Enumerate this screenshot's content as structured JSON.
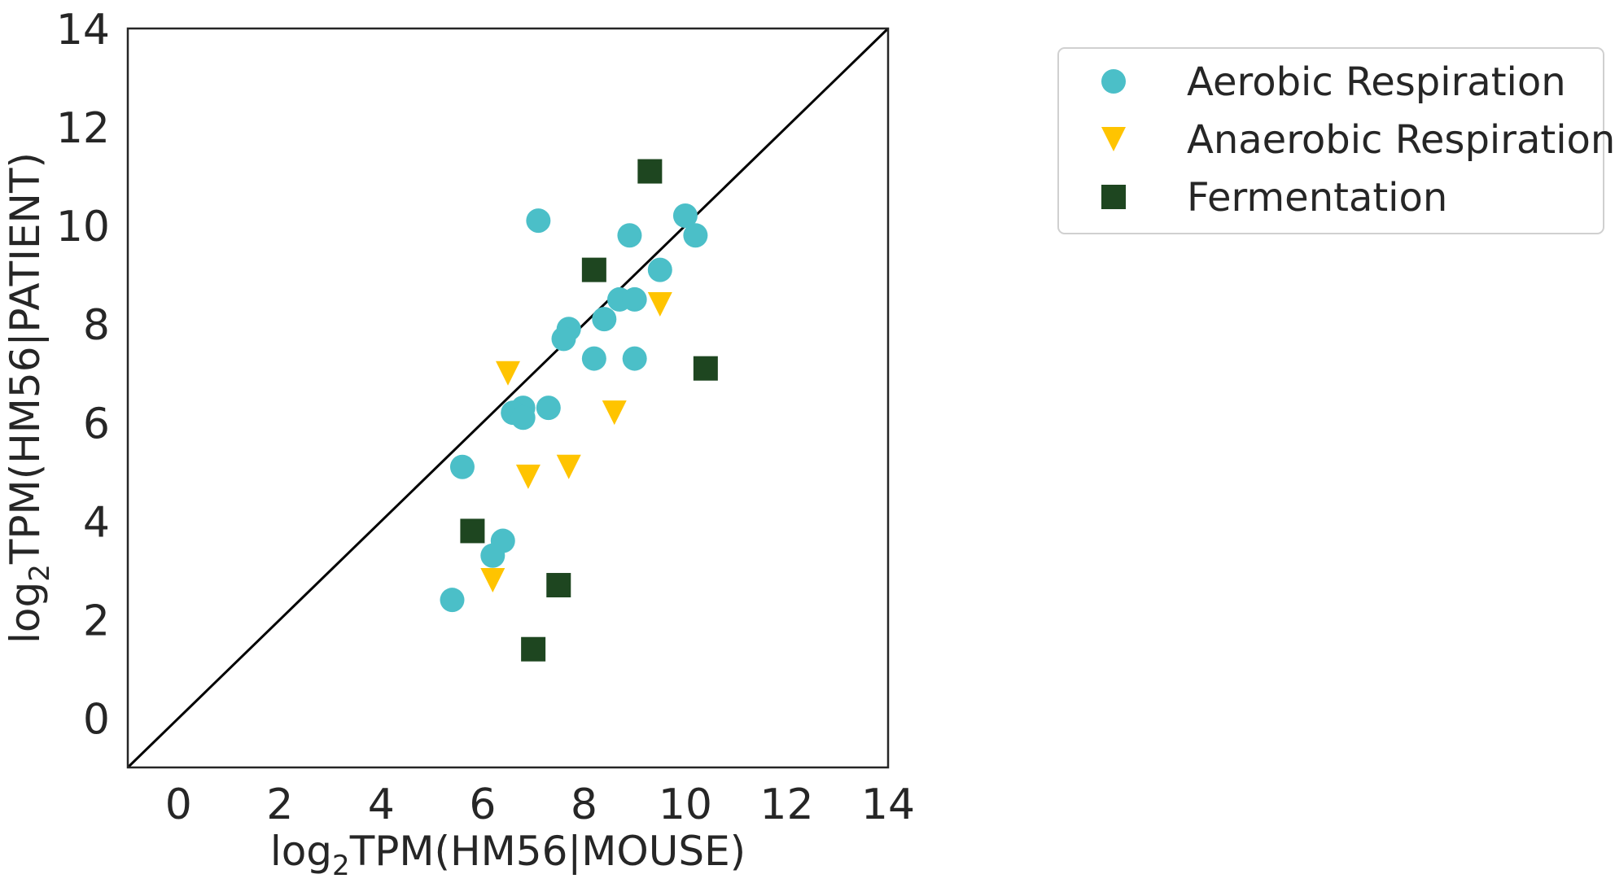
{
  "chart_data": {
    "type": "scatter",
    "xlabel": {
      "prefix": "log",
      "sub": "2",
      "rest": "TPM(HM56|MOUSE)"
    },
    "ylabel": {
      "prefix": "log",
      "sub": "2",
      "rest": "TPM(HM56|PATIENT)"
    },
    "xlim": [
      -1,
      14
    ],
    "ylim": [
      -1,
      14
    ],
    "xticks": [
      0,
      2,
      4,
      6,
      8,
      10,
      12,
      14
    ],
    "yticks": [
      0,
      2,
      4,
      6,
      8,
      10,
      12,
      14
    ],
    "grid": false,
    "diagonal_line": true,
    "legend_position": "outside-right-top",
    "series": [
      {
        "name": "Aerobic Respiration",
        "marker": "circle",
        "color": "#4bbfc8",
        "points": [
          [
            7.1,
            10.1
          ],
          [
            8.9,
            9.8
          ],
          [
            10.0,
            10.2
          ],
          [
            10.2,
            9.8
          ],
          [
            9.5,
            9.1
          ],
          [
            8.7,
            8.5
          ],
          [
            9.0,
            8.5
          ],
          [
            8.4,
            8.1
          ],
          [
            7.7,
            7.9
          ],
          [
            7.6,
            7.7
          ],
          [
            8.2,
            7.3
          ],
          [
            9.0,
            7.3
          ],
          [
            6.8,
            6.3
          ],
          [
            6.6,
            6.2
          ],
          [
            6.8,
            6.1
          ],
          [
            7.3,
            6.3
          ],
          [
            5.6,
            5.1
          ],
          [
            6.4,
            3.6
          ],
          [
            6.2,
            3.3
          ],
          [
            5.4,
            2.4
          ]
        ]
      },
      {
        "name": "Anaerobic Respiration",
        "marker": "triangle-down",
        "color": "#ffc400",
        "points": [
          [
            9.5,
            8.4
          ],
          [
            6.5,
            7.0
          ],
          [
            8.6,
            6.2
          ],
          [
            7.7,
            5.1
          ],
          [
            6.9,
            4.9
          ],
          [
            6.2,
            2.8
          ]
        ]
      },
      {
        "name": "Fermentation",
        "marker": "square",
        "color": "#1e4620",
        "points": [
          [
            9.3,
            11.1
          ],
          [
            8.2,
            9.1
          ],
          [
            10.4,
            7.1
          ],
          [
            5.8,
            3.8
          ],
          [
            7.5,
            2.7
          ],
          [
            7.0,
            1.4
          ]
        ]
      }
    ]
  }
}
